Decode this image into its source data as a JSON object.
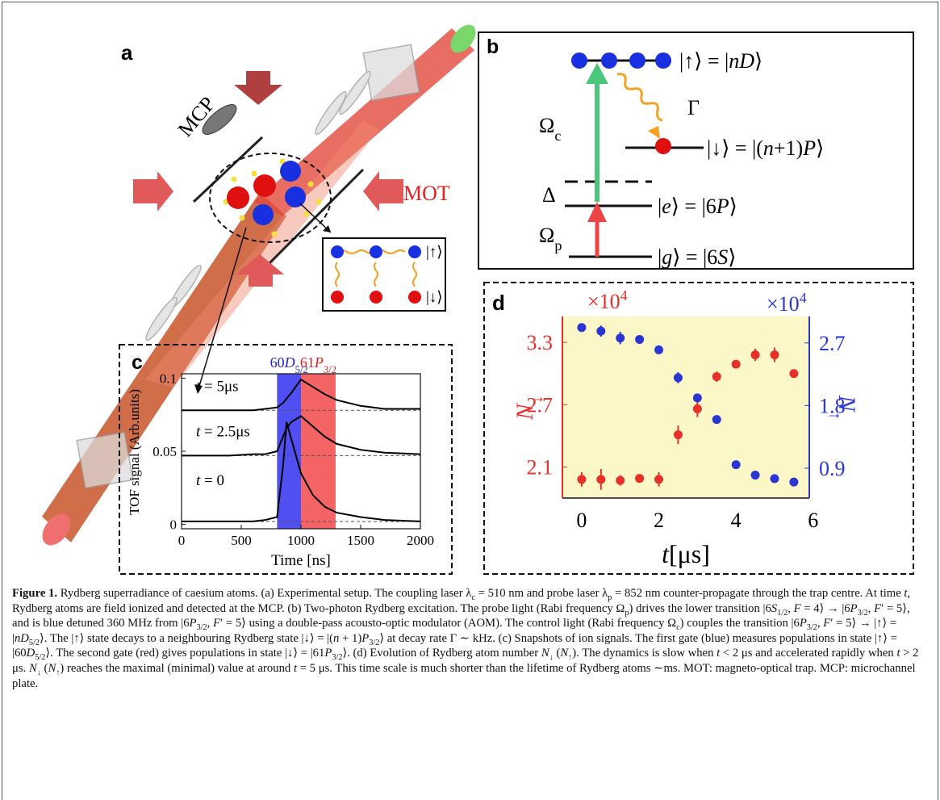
{
  "panel_a": {
    "label": "a",
    "mcp": "MCP",
    "mot": "MOT",
    "inset_up": "|↑⟩",
    "inset_down": "|↓⟩"
  },
  "panel_b": {
    "label": "b",
    "upper_state": [
      [
        "",
        "|↑⟩ = |"
      ],
      [
        "i",
        "nD"
      ],
      [
        "",
        "⟩"
      ]
    ],
    "gamma": [
      [
        "",
        "Γ"
      ]
    ],
    "omega_c": [
      [
        "",
        "Ω"
      ],
      [
        "sub",
        "c"
      ]
    ],
    "lower_rydberg": [
      [
        "",
        "|↓⟩ = |("
      ],
      [
        "i",
        "n"
      ],
      [
        "",
        "+1)"
      ],
      [
        "i",
        "P"
      ],
      [
        "",
        "⟩"
      ]
    ],
    "delta": [
      [
        "",
        "Δ"
      ]
    ],
    "excited": [
      [
        "",
        "|"
      ],
      [
        "i",
        "e"
      ],
      [
        "",
        "⟩ = |6"
      ],
      [
        "i",
        "P"
      ],
      [
        "",
        "⟩"
      ]
    ],
    "omega_p": [
      [
        "",
        "Ω"
      ],
      [
        "sub",
        "p"
      ]
    ],
    "ground": [
      [
        "",
        "|"
      ],
      [
        "i",
        "g"
      ],
      [
        "",
        "⟩ = |6"
      ],
      [
        "i",
        "S"
      ],
      [
        "",
        "⟩"
      ]
    ]
  },
  "chart_data": [
    {
      "type": "line",
      "panel_label": "c",
      "x_label": "Time [ns]",
      "y_label": "TOF signal (Arb.units)",
      "x": [
        0,
        200,
        400,
        600,
        700,
        800,
        850,
        880,
        920,
        1000,
        1100,
        1200,
        1300,
        1500,
        1700,
        2000
      ],
      "series": [
        {
          "color": "#000000",
          "label": [
            [
              "i",
              "t"
            ],
            [
              "",
              " = 0"
            ]
          ],
          "values": [
            0.002,
            0.002,
            0.002,
            0.002,
            0.003,
            0.005,
            0.04,
            0.07,
            0.058,
            0.035,
            0.02,
            0.012,
            0.008,
            0.005,
            0.003,
            0.002
          ]
        },
        {
          "color": "#000000",
          "label": [
            [
              "i",
              "t"
            ],
            [
              "",
              " = 2.5μs"
            ]
          ],
          "values": [
            0.047,
            0.047,
            0.047,
            0.048,
            0.048,
            0.05,
            0.06,
            0.066,
            0.07,
            0.074,
            0.067,
            0.06,
            0.055,
            0.051,
            0.049,
            0.048
          ]
        },
        {
          "color": "#000000",
          "label": [
            [
              "i",
              "t"
            ],
            [
              "",
              " = 5μs"
            ]
          ],
          "values": [
            0.078,
            0.078,
            0.078,
            0.078,
            0.079,
            0.08,
            0.083,
            0.086,
            0.09,
            0.099,
            0.094,
            0.089,
            0.085,
            0.081,
            0.079,
            0.079
          ]
        }
      ],
      "baselines": [
        0.002,
        0.047,
        0.078
      ],
      "gates": [
        {
          "from": 800,
          "to": 1000,
          "color": "#4f4ff2",
          "text_color": "#2020e0",
          "label": [
            [
              "",
              "60"
            ],
            [
              "i",
              "D"
            ],
            [
              "sub",
              "5/2"
            ]
          ]
        },
        {
          "from": 1000,
          "to": 1290,
          "color": "#f46464",
          "text_color": "#e02020",
          "label": [
            [
              "",
              "61"
            ],
            [
              "i",
              "P"
            ],
            [
              "sub",
              "3/2"
            ]
          ]
        }
      ],
      "xlim": [
        0,
        2000
      ],
      "xticks": [
        0,
        500,
        1000,
        1500,
        2000
      ],
      "ylim": [
        -0.003,
        0.103
      ],
      "yticks": [
        0,
        0.05,
        0.1
      ]
    },
    {
      "type": "scatter",
      "panel_label": "d",
      "x_label": [
        [
          "i",
          "t"
        ],
        [
          "",
          "[μs]"
        ]
      ],
      "y_label": [
        [
          "i",
          "N"
        ],
        [
          "sub",
          "↓"
        ]
      ],
      "y2_label": [
        [
          "i",
          "N"
        ],
        [
          "sub",
          "↑"
        ]
      ],
      "y_multiplier": [
        [
          "",
          "×10"
        ],
        [
          "sup",
          "4"
        ]
      ],
      "y2_multiplier": [
        [
          "",
          "×10"
        ],
        [
          "sup",
          "4"
        ]
      ],
      "background": "#fbf7c6",
      "x": [
        0,
        0.5,
        1,
        1.5,
        2,
        2.5,
        3,
        3.5,
        4,
        4.5,
        5,
        5.5
      ],
      "series": [
        {
          "color": "#e8302a",
          "axis": "y",
          "values": [
            1.98,
            1.98,
            1.97,
            1.99,
            1.98,
            2.41,
            2.66,
            2.97,
            3.09,
            3.18,
            3.18,
            3.0
          ],
          "errors": [
            0.07,
            0.1,
            0.05,
            0.04,
            0.07,
            0.09,
            0.08,
            0.05,
            0.03,
            0.06,
            0.07,
            0.04
          ]
        },
        {
          "color": "#2b35d4",
          "axis": "y2",
          "values": [
            2.92,
            2.87,
            2.77,
            2.75,
            2.6,
            2.2,
            1.91,
            1.6,
            0.95,
            0.8,
            0.75,
            0.7
          ],
          "errors": [
            0.04,
            0.08,
            0.09,
            0.06,
            0.03,
            0.08,
            0.03,
            0.03,
            0.03,
            0.03,
            0.05,
            0.06
          ]
        }
      ],
      "xlim": [
        -0.5,
        5.9
      ],
      "xticks": [
        0,
        2,
        4,
        6
      ],
      "ylim": [
        1.8,
        3.55
      ],
      "yticks": [
        2.1,
        2.7,
        3.3
      ],
      "y2lim": [
        0.47,
        3.08
      ],
      "y2ticks": [
        0.9,
        1.8,
        2.7
      ]
    }
  ],
  "caption": [
    [
      "b",
      "Figure 1."
    ],
    [
      "",
      "  Rydberg superradiance of caesium atoms. (a) Experimental setup. The coupling laser λ"
    ],
    [
      "sub",
      "c"
    ],
    [
      "",
      " = 510 nm and probe laser λ"
    ],
    [
      "sub",
      "p"
    ],
    [
      "",
      " = 852 nm counter-propagate through the trap centre. At time "
    ],
    [
      "i",
      "t"
    ],
    [
      "",
      ", Rydberg atoms are field ionized and detected at the MCP. (b) Two-photon Rydberg excitation. The probe light (Rabi frequency Ω"
    ],
    [
      "sub",
      "p"
    ],
    [
      "",
      ") drives the lower transition |6"
    ],
    [
      "i",
      "S"
    ],
    [
      "sub",
      "1/2"
    ],
    [
      "",
      ", "
    ],
    [
      "i",
      "F"
    ],
    [
      "",
      " = 4⟩ → |6"
    ],
    [
      "i",
      "P"
    ],
    [
      "sub",
      "3/2"
    ],
    [
      "",
      ", "
    ],
    [
      "i",
      "F"
    ],
    [
      "",
      "′ = 5⟩, and is blue detuned 360 MHz from |6"
    ],
    [
      "i",
      "P"
    ],
    [
      "sub",
      "3/2"
    ],
    [
      "",
      ", "
    ],
    [
      "i",
      "F"
    ],
    [
      "",
      "′ = 5⟩ using a double-pass acousto-optic modulator (AOM). The control light (Rabi frequency Ω"
    ],
    [
      "sub",
      "c"
    ],
    [
      "",
      ") couples the transition |6"
    ],
    [
      "i",
      "P"
    ],
    [
      "sub",
      "3/2"
    ],
    [
      "",
      ", "
    ],
    [
      "i",
      "F"
    ],
    [
      "",
      "′ = 5⟩ → |↑⟩ = |"
    ],
    [
      "i",
      "nD"
    ],
    [
      "sub",
      "5/2"
    ],
    [
      "",
      "⟩. The |↑⟩ state decays to a neighbouring Rydberg state |↓⟩ = |("
    ],
    [
      "i",
      "n"
    ],
    [
      "",
      " + 1)"
    ],
    [
      "i",
      "P"
    ],
    [
      "sub",
      "3/2"
    ],
    [
      "",
      "⟩ at decay rate Γ ∼ kHz. (c) Snapshots of ion signals. The first gate (blue) measures populations in state |↑⟩ = |60"
    ],
    [
      "i",
      "D"
    ],
    [
      "sub",
      "5/2"
    ],
    [
      "",
      "⟩. The second gate (red) gives populations in state |↓⟩ = |61"
    ],
    [
      "i",
      "P"
    ],
    [
      "sub",
      "3/2"
    ],
    [
      "",
      "⟩. (d) Evolution of Rydberg atom number "
    ],
    [
      "i",
      "N"
    ],
    [
      "sub",
      "↓"
    ],
    [
      "",
      " ("
    ],
    [
      "i",
      "N"
    ],
    [
      "sub",
      "↑"
    ],
    [
      "",
      "). The dynamics is slow when "
    ],
    [
      "i",
      "t"
    ],
    [
      "",
      " < 2 μs and accelerated rapidly when "
    ],
    [
      "i",
      "t"
    ],
    [
      "",
      " > 2 μs. "
    ],
    [
      "i",
      "N"
    ],
    [
      "sub",
      "↓"
    ],
    [
      "",
      " ("
    ],
    [
      "i",
      "N"
    ],
    [
      "sub",
      "↑"
    ],
    [
      "",
      ") reaches the maximal (minimal) value at around "
    ],
    [
      "i",
      "t"
    ],
    [
      "",
      " = 5 μs. This time scale is much shorter than the lifetime of Rydberg atoms ∼ms. MOT: magneto-optical trap. MCP: microchannel plate."
    ]
  ]
}
